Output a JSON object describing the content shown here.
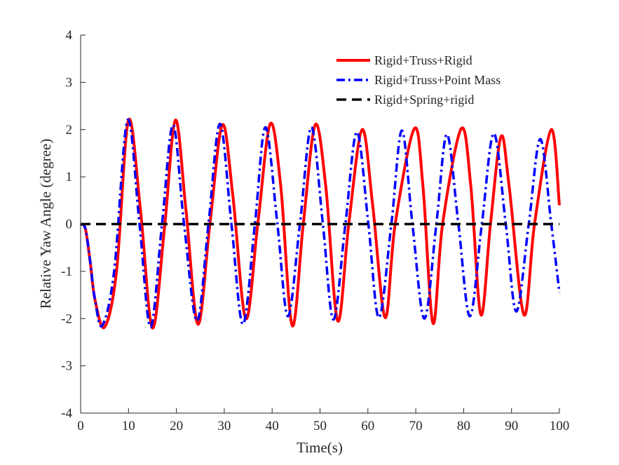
{
  "chart_data": {
    "type": "line",
    "title": "",
    "xlabel": "Time(s)",
    "ylabel": "Relative Yaw Angle (degree)",
    "xlim": [
      0,
      100
    ],
    "ylim": [
      -4,
      4
    ],
    "x_ticks": [
      0,
      10,
      20,
      30,
      40,
      50,
      60,
      70,
      80,
      90,
      100
    ],
    "y_ticks": [
      -4,
      -3,
      -2,
      -1,
      0,
      1,
      2,
      3,
      4
    ],
    "grid": false,
    "legend_position": "top-right",
    "series": [
      {
        "name": "Rigid+Truss+Rigid",
        "color": "#ff0000",
        "line_style": "solid",
        "x": [
          0,
          1,
          2,
          3,
          5,
          7.5,
          10,
          12.5,
          15,
          17.5,
          19.8,
          22,
          24.5,
          27,
          29.6,
          31.8,
          34.5,
          37,
          39.6,
          41.8,
          44.2,
          46.5,
          49,
          51.2,
          53.7,
          56,
          58.8,
          61,
          63.6,
          65.7,
          69.7,
          71.5,
          73.6,
          75.6,
          79.5,
          81.5,
          83.6,
          85.6,
          87.8,
          89.5,
          92.6,
          94.8,
          98.3,
          100
        ],
        "y": [
          0,
          -0.1,
          -0.8,
          -1.6,
          -2.18,
          -1.0,
          2.2,
          0.3,
          -2.2,
          -0.1,
          2.2,
          0.3,
          -2.12,
          0.0,
          2.1,
          0.6,
          -2.0,
          0.0,
          2.12,
          0.8,
          -2.15,
          0.0,
          2.1,
          0.8,
          -2.05,
          0.0,
          2.0,
          0.4,
          -1.98,
          0.0,
          2.02,
          0.8,
          -2.1,
          0.0,
          2.02,
          0.8,
          -1.92,
          0.0,
          1.85,
          0.8,
          -1.92,
          0.0,
          2.0,
          0.4
        ]
      },
      {
        "name": "Rigid+Truss+Point Mass",
        "color": "#0000ff",
        "line_style": "dash-dot",
        "x": [
          0,
          1,
          2,
          3,
          4.5,
          7,
          9.8,
          12.3,
          14.6,
          17,
          19.3,
          21.6,
          24.3,
          26.7,
          29.1,
          31.5,
          33.9,
          36.4,
          38.6,
          41.1,
          43.3,
          45.8,
          48.2,
          50.6,
          52.8,
          55.3,
          57.7,
          60.1,
          62.3,
          64.9,
          67.1,
          69.3,
          71.8,
          74.3,
          76.5,
          78.9,
          81.3,
          83.8,
          86.3,
          88.8,
          91,
          93.6,
          96,
          98.3,
          100
        ],
        "y": [
          0,
          -0.1,
          -0.8,
          -1.6,
          -2.15,
          -1.0,
          2.2,
          0.0,
          -2.18,
          0.0,
          2.1,
          0.0,
          -2.05,
          0.0,
          2.12,
          0.0,
          -2.12,
          0.0,
          2.05,
          0.0,
          -1.95,
          0.0,
          2.05,
          0.0,
          -2.02,
          0.0,
          1.95,
          0.0,
          -1.98,
          0.0,
          1.98,
          0.0,
          -2.0,
          0.0,
          1.9,
          0.0,
          -1.95,
          0.0,
          1.92,
          0.0,
          -1.85,
          0.0,
          1.8,
          0.0,
          -1.45
        ]
      },
      {
        "name": "Rigid+Spring+rigid",
        "color": "#000000",
        "line_style": "dashed",
        "x": [
          0,
          100
        ],
        "y": [
          0,
          0
        ]
      }
    ]
  }
}
